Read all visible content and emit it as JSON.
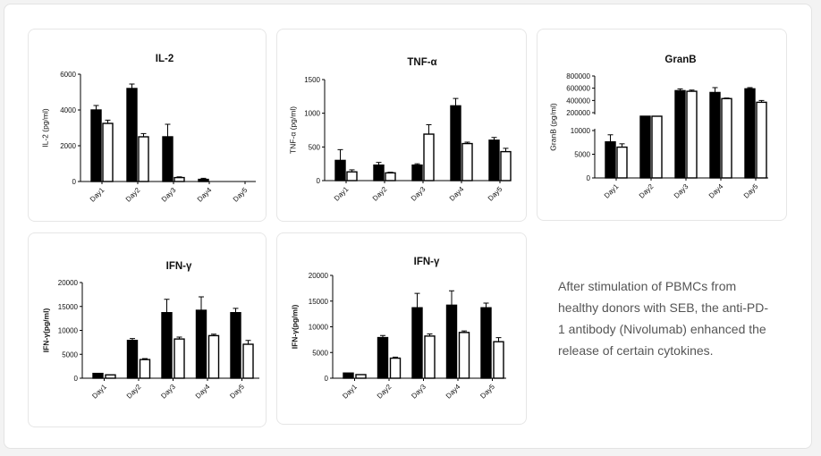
{
  "description": "After stimulation of PBMCs from healthy donors with SEB, the anti-PD-1 antibody (Nivolumab) enhanced the release of certain cytokines.",
  "colors": {
    "filled": "#000000",
    "open": "#ffffff",
    "axis": "#000000"
  },
  "chart_data": [
    {
      "type": "bar",
      "title": "IL-2",
      "ylabel": "IL-2 (pg/ml)",
      "categories": [
        "Day1",
        "Day2",
        "Day3",
        "Day4",
        "Day5"
      ],
      "ylim": [
        0,
        6000
      ],
      "yticks": [
        "0",
        "2000",
        "4000",
        "6000"
      ],
      "series": [
        {
          "values": [
            4000,
            5200,
            2500,
            120,
            0
          ],
          "errors": [
            250,
            250,
            700,
            60,
            0
          ],
          "fill": "#000000"
        },
        {
          "values": [
            3250,
            2500,
            220,
            0,
            0
          ],
          "errors": [
            180,
            180,
            40,
            0,
            0
          ],
          "fill": "#ffffff"
        }
      ]
    },
    {
      "type": "bar",
      "title": "TNF-α",
      "ylabel": "TNF-α (pg/ml)",
      "categories": [
        "Day1",
        "Day2",
        "Day3",
        "Day4",
        "Day5"
      ],
      "ylim": [
        0,
        1500
      ],
      "yticks": [
        "0",
        "500",
        "1000",
        "1500"
      ],
      "series": [
        {
          "values": [
            300,
            230,
            230,
            1110,
            600
          ],
          "errors": [
            160,
            40,
            20,
            110,
            40
          ],
          "fill": "#000000"
        },
        {
          "values": [
            130,
            115,
            690,
            550,
            430
          ],
          "errors": [
            30,
            10,
            140,
            20,
            50
          ],
          "fill": "#ffffff"
        }
      ]
    },
    {
      "type": "bar",
      "title": "GranB",
      "ylabel": "GranB (pg/ml)",
      "categories": [
        "Day1",
        "Day2",
        "Day3",
        "Day4",
        "Day5"
      ],
      "axis_break": {
        "lower": [
          0,
          10000
        ],
        "upper": [
          200000,
          800000
        ]
      },
      "yticks": [
        "0",
        "5000",
        "10000",
        "200000",
        "400000",
        "600000",
        "800000"
      ],
      "series": [
        {
          "values": [
            7600,
            12000,
            560000,
            530000,
            590000
          ],
          "errors": [
            1500,
            0,
            30000,
            80000,
            20000
          ],
          "fill": "#000000"
        },
        {
          "values": [
            6500,
            12000,
            550000,
            430000,
            370000
          ],
          "errors": [
            700,
            0,
            20000,
            10000,
            30000
          ],
          "fill": "#ffffff"
        }
      ]
    },
    {
      "type": "bar",
      "title": "IFN-γ",
      "ylabel": "IFN-γ(pg/ml)",
      "categories": [
        "Day1",
        "Day2",
        "Day3",
        "Day4",
        "Day5"
      ],
      "ylim": [
        0,
        20000
      ],
      "yticks": [
        "0",
        "5000",
        "10000",
        "15000",
        "20000"
      ],
      "series": [
        {
          "values": [
            1000,
            7900,
            13700,
            14200,
            13700
          ],
          "errors": [
            0,
            400,
            2800,
            2800,
            900
          ],
          "fill": "#000000"
        },
        {
          "values": [
            700,
            3900,
            8200,
            8900,
            7100
          ],
          "errors": [
            0,
            200,
            400,
            300,
            800
          ],
          "fill": "#ffffff"
        }
      ]
    },
    {
      "type": "bar",
      "title": "IFN-γ",
      "ylabel": "IFN-γ(pg/ml)",
      "categories": [
        "Day1",
        "Day2",
        "Day3",
        "Day4",
        "Day5"
      ],
      "ylim": [
        0,
        20000
      ],
      "yticks": [
        "0",
        "5000",
        "10000",
        "15000",
        "20000"
      ],
      "series": [
        {
          "values": [
            1000,
            7900,
            13700,
            14200,
            13700
          ],
          "errors": [
            0,
            400,
            2800,
            2800,
            900
          ],
          "fill": "#000000"
        },
        {
          "values": [
            700,
            3900,
            8200,
            8900,
            7100
          ],
          "errors": [
            0,
            200,
            400,
            300,
            800
          ],
          "fill": "#ffffff"
        }
      ]
    }
  ]
}
